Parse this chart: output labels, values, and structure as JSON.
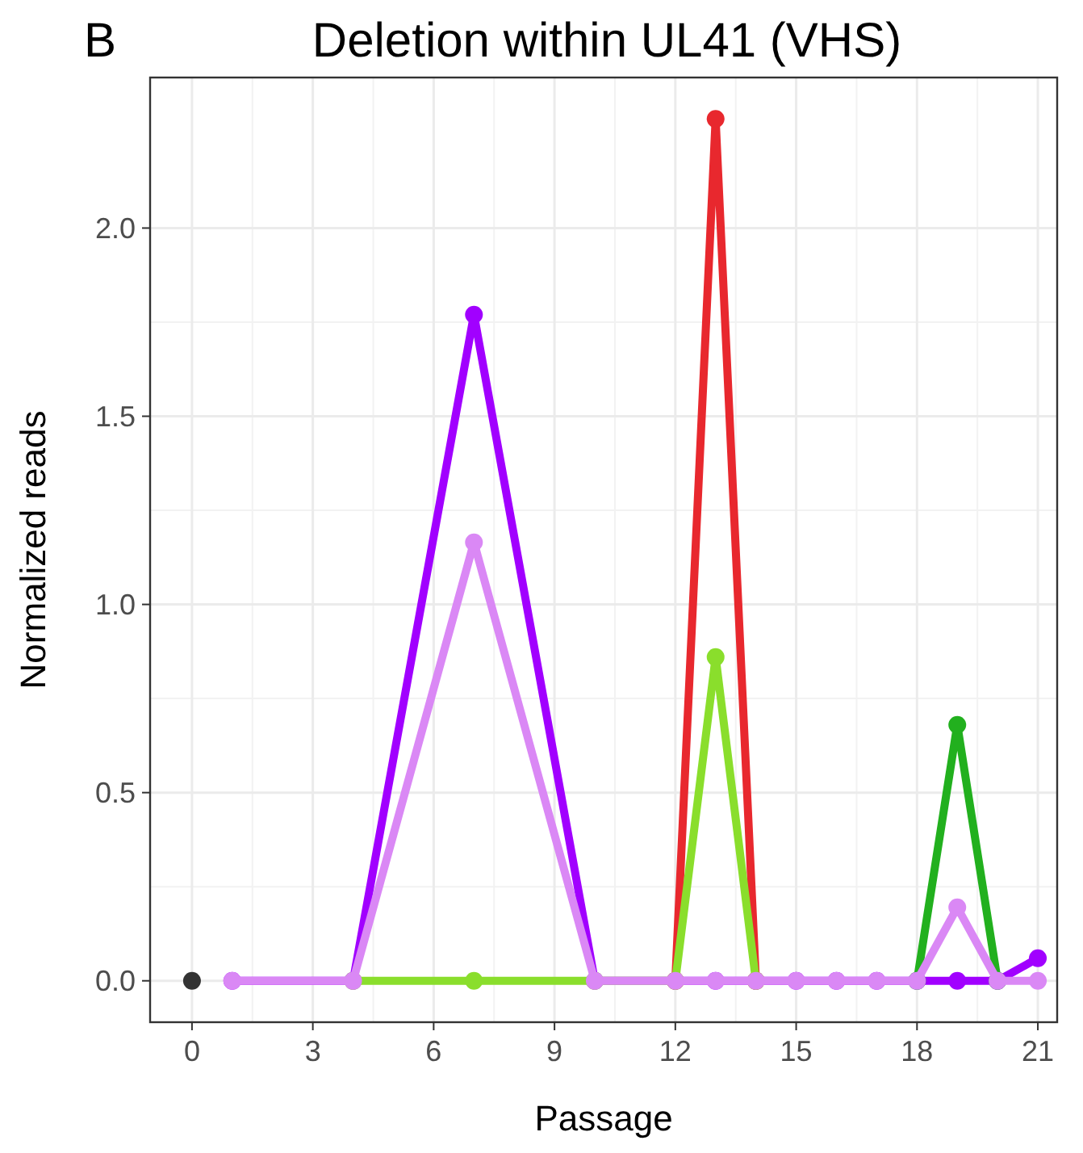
{
  "chart_data": {
    "type": "line",
    "title": "Deletion within UL41 (VHS)",
    "xlabel": "Passage",
    "ylabel": "Normalized reads",
    "annotations": [
      "B"
    ],
    "xlim": [
      -1.04,
      21.48
    ],
    "xticks": [
      0,
      3,
      6,
      9,
      12,
      15,
      18,
      21
    ],
    "ylim": [
      -0.11,
      2.4
    ],
    "yticks": [
      {
        "value": 0,
        "label": "0.0"
      },
      {
        "value": 0.5,
        "label": "0.5"
      },
      {
        "value": 1,
        "label": "1.0"
      },
      {
        "value": 1.5,
        "label": "1.5"
      },
      {
        "value": 2,
        "label": "2.0"
      }
    ],
    "grid": true,
    "marker": "circle",
    "line_style": "solid",
    "series": [
      {
        "color": "#a100ff",
        "x": [
          1,
          4,
          7,
          10,
          12,
          13,
          14,
          15,
          16,
          17,
          18,
          19,
          20,
          21
        ],
        "values": [
          0,
          0,
          1.77,
          0,
          0,
          0,
          0,
          0,
          0,
          0,
          0,
          0,
          0,
          0.06
        ]
      },
      {
        "color": "#e8282e",
        "x": [
          12,
          13,
          14
        ],
        "values": [
          0,
          2.29,
          0
        ]
      },
      {
        "color": "#8ade2c",
        "x": [
          4,
          7,
          10,
          12,
          13,
          14
        ],
        "values": [
          0,
          0,
          0,
          0,
          0.86,
          0
        ]
      },
      {
        "color": "#22b01e",
        "x": [
          18,
          19,
          20
        ],
        "values": [
          0,
          0.68,
          0
        ]
      },
      {
        "color": "#da88f5",
        "x": [
          1,
          4,
          7,
          10,
          12,
          13,
          14,
          15,
          16,
          17,
          18,
          19,
          20,
          21
        ],
        "values": [
          0,
          0,
          1.165,
          0,
          0,
          0,
          0,
          0,
          0,
          0,
          0,
          0.195,
          0,
          0
        ]
      },
      {
        "color": "#333333",
        "x": [
          0
        ],
        "values": [
          0
        ]
      }
    ]
  }
}
